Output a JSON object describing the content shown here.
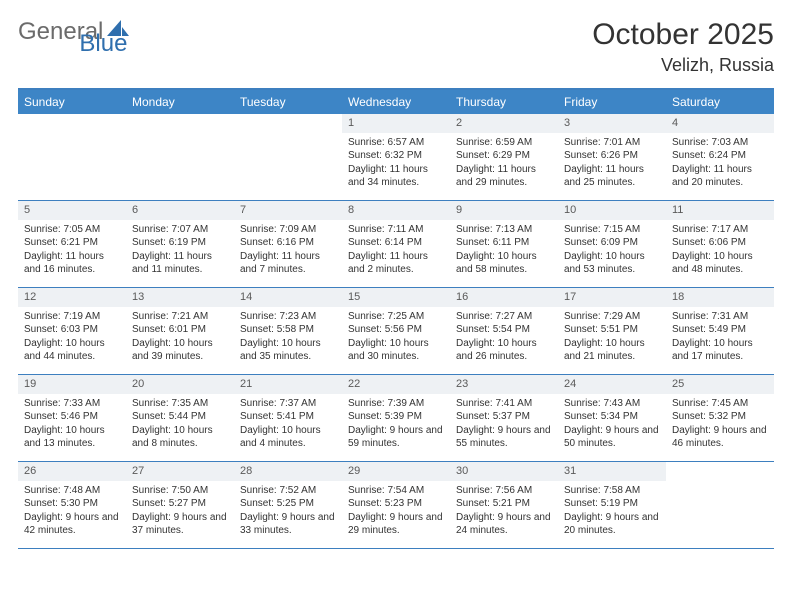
{
  "logo": {
    "part1": "General",
    "part2": "Blue"
  },
  "title": "October 2025",
  "location": "Velizh, Russia",
  "colors": {
    "header_bg": "#3d85c6",
    "header_border": "#3d7fbf",
    "daynum_bg": "#eef1f4",
    "text": "#333333",
    "logo_gray": "#6b6b6b",
    "logo_blue": "#2f6fae"
  },
  "day_names": [
    "Sunday",
    "Monday",
    "Tuesday",
    "Wednesday",
    "Thursday",
    "Friday",
    "Saturday"
  ],
  "weeks": [
    [
      {
        "empty": true
      },
      {
        "empty": true
      },
      {
        "empty": true
      },
      {
        "day": "1",
        "sunrise": "6:57 AM",
        "sunset": "6:32 PM",
        "daylight": "11 hours and 34 minutes."
      },
      {
        "day": "2",
        "sunrise": "6:59 AM",
        "sunset": "6:29 PM",
        "daylight": "11 hours and 29 minutes."
      },
      {
        "day": "3",
        "sunrise": "7:01 AM",
        "sunset": "6:26 PM",
        "daylight": "11 hours and 25 minutes."
      },
      {
        "day": "4",
        "sunrise": "7:03 AM",
        "sunset": "6:24 PM",
        "daylight": "11 hours and 20 minutes."
      }
    ],
    [
      {
        "day": "5",
        "sunrise": "7:05 AM",
        "sunset": "6:21 PM",
        "daylight": "11 hours and 16 minutes."
      },
      {
        "day": "6",
        "sunrise": "7:07 AM",
        "sunset": "6:19 PM",
        "daylight": "11 hours and 11 minutes."
      },
      {
        "day": "7",
        "sunrise": "7:09 AM",
        "sunset": "6:16 PM",
        "daylight": "11 hours and 7 minutes."
      },
      {
        "day": "8",
        "sunrise": "7:11 AM",
        "sunset": "6:14 PM",
        "daylight": "11 hours and 2 minutes."
      },
      {
        "day": "9",
        "sunrise": "7:13 AM",
        "sunset": "6:11 PM",
        "daylight": "10 hours and 58 minutes."
      },
      {
        "day": "10",
        "sunrise": "7:15 AM",
        "sunset": "6:09 PM",
        "daylight": "10 hours and 53 minutes."
      },
      {
        "day": "11",
        "sunrise": "7:17 AM",
        "sunset": "6:06 PM",
        "daylight": "10 hours and 48 minutes."
      }
    ],
    [
      {
        "day": "12",
        "sunrise": "7:19 AM",
        "sunset": "6:03 PM",
        "daylight": "10 hours and 44 minutes."
      },
      {
        "day": "13",
        "sunrise": "7:21 AM",
        "sunset": "6:01 PM",
        "daylight": "10 hours and 39 minutes."
      },
      {
        "day": "14",
        "sunrise": "7:23 AM",
        "sunset": "5:58 PM",
        "daylight": "10 hours and 35 minutes."
      },
      {
        "day": "15",
        "sunrise": "7:25 AM",
        "sunset": "5:56 PM",
        "daylight": "10 hours and 30 minutes."
      },
      {
        "day": "16",
        "sunrise": "7:27 AM",
        "sunset": "5:54 PM",
        "daylight": "10 hours and 26 minutes."
      },
      {
        "day": "17",
        "sunrise": "7:29 AM",
        "sunset": "5:51 PM",
        "daylight": "10 hours and 21 minutes."
      },
      {
        "day": "18",
        "sunrise": "7:31 AM",
        "sunset": "5:49 PM",
        "daylight": "10 hours and 17 minutes."
      }
    ],
    [
      {
        "day": "19",
        "sunrise": "7:33 AM",
        "sunset": "5:46 PM",
        "daylight": "10 hours and 13 minutes."
      },
      {
        "day": "20",
        "sunrise": "7:35 AM",
        "sunset": "5:44 PM",
        "daylight": "10 hours and 8 minutes."
      },
      {
        "day": "21",
        "sunrise": "7:37 AM",
        "sunset": "5:41 PM",
        "daylight": "10 hours and 4 minutes."
      },
      {
        "day": "22",
        "sunrise": "7:39 AM",
        "sunset": "5:39 PM",
        "daylight": "9 hours and 59 minutes."
      },
      {
        "day": "23",
        "sunrise": "7:41 AM",
        "sunset": "5:37 PM",
        "daylight": "9 hours and 55 minutes."
      },
      {
        "day": "24",
        "sunrise": "7:43 AM",
        "sunset": "5:34 PM",
        "daylight": "9 hours and 50 minutes."
      },
      {
        "day": "25",
        "sunrise": "7:45 AM",
        "sunset": "5:32 PM",
        "daylight": "9 hours and 46 minutes."
      }
    ],
    [
      {
        "day": "26",
        "sunrise": "7:48 AM",
        "sunset": "5:30 PM",
        "daylight": "9 hours and 42 minutes."
      },
      {
        "day": "27",
        "sunrise": "7:50 AM",
        "sunset": "5:27 PM",
        "daylight": "9 hours and 37 minutes."
      },
      {
        "day": "28",
        "sunrise": "7:52 AM",
        "sunset": "5:25 PM",
        "daylight": "9 hours and 33 minutes."
      },
      {
        "day": "29",
        "sunrise": "7:54 AM",
        "sunset": "5:23 PM",
        "daylight": "9 hours and 29 minutes."
      },
      {
        "day": "30",
        "sunrise": "7:56 AM",
        "sunset": "5:21 PM",
        "daylight": "9 hours and 24 minutes."
      },
      {
        "day": "31",
        "sunrise": "7:58 AM",
        "sunset": "5:19 PM",
        "daylight": "9 hours and 20 minutes."
      },
      {
        "empty": true
      }
    ]
  ],
  "labels": {
    "sunrise": "Sunrise: ",
    "sunset": "Sunset: ",
    "daylight": "Daylight: "
  }
}
